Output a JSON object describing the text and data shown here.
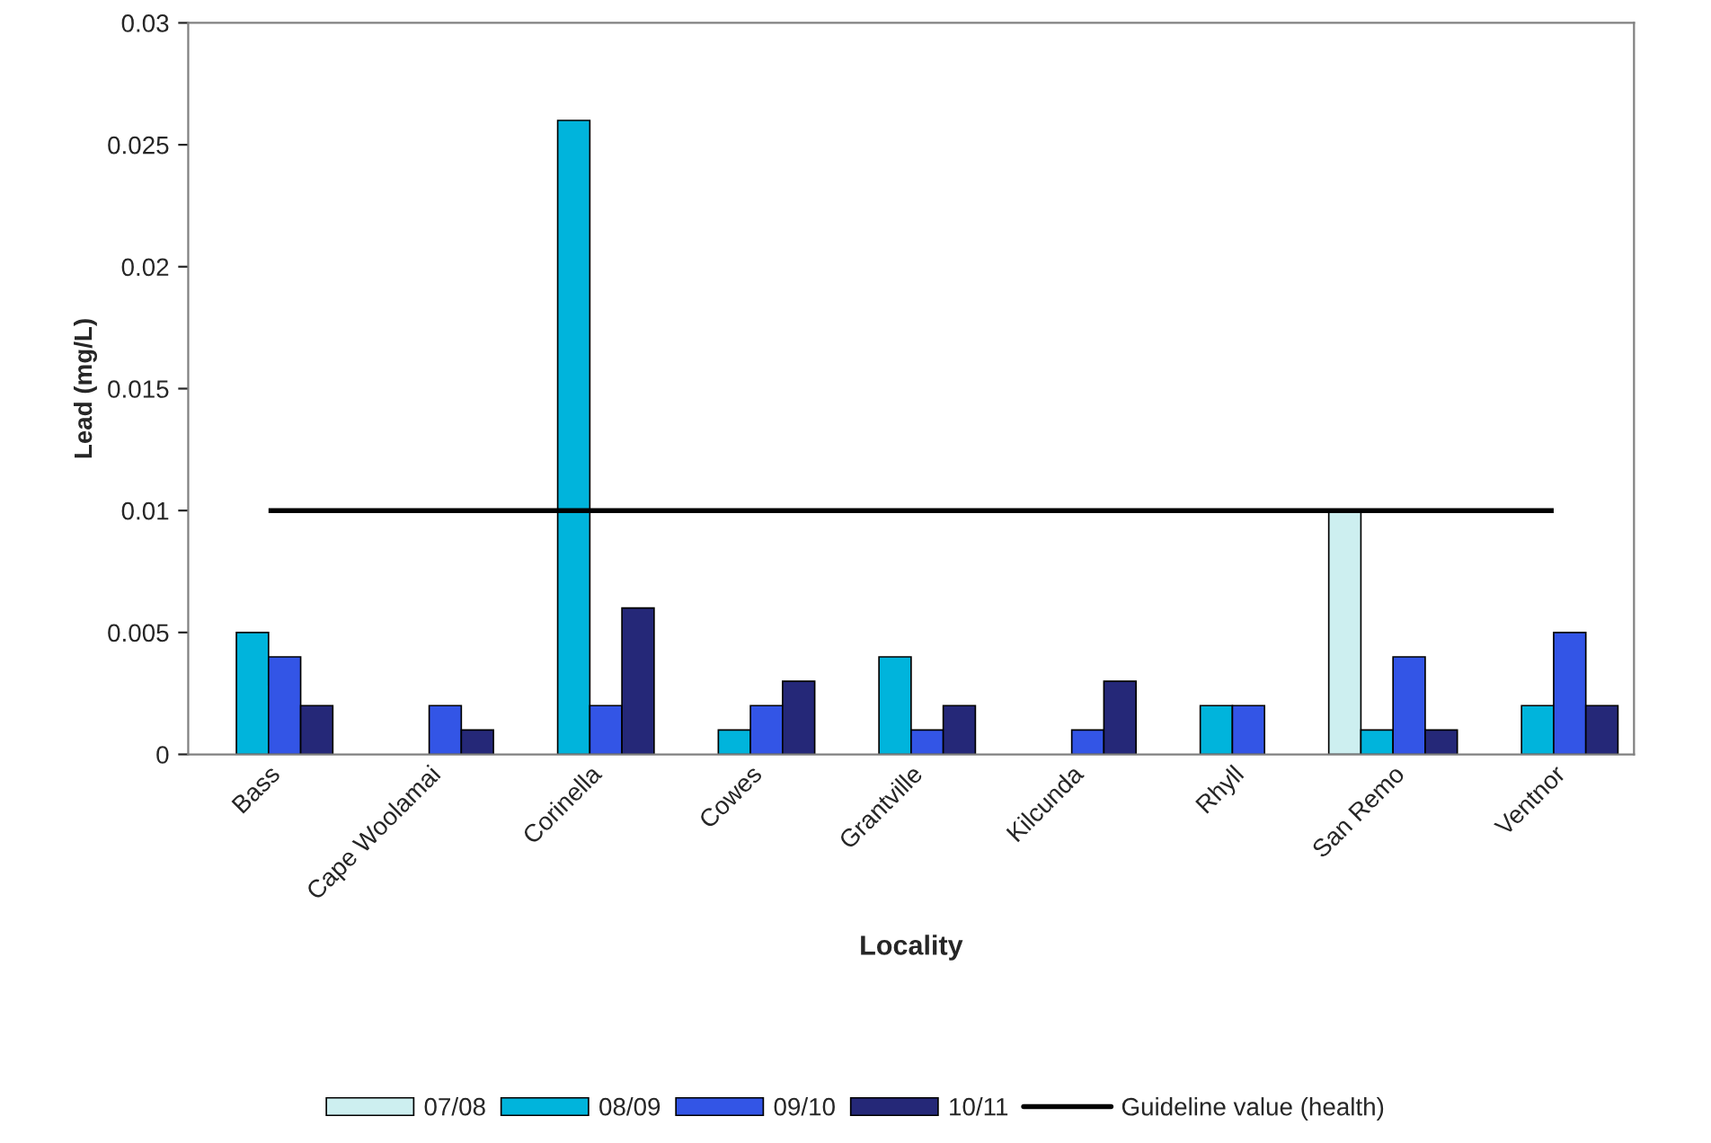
{
  "chart_data": {
    "type": "bar",
    "xlabel": "Locality",
    "ylabel": "Lead (mg/L)",
    "categories": [
      "Bass",
      "Cape Woolamai",
      "Corinella",
      "Cowes",
      "Grantville",
      "Kilcunda",
      "Rhyll",
      "San Remo",
      "Ventnor"
    ],
    "series": [
      {
        "name": "07/08",
        "color": "#cdeff0",
        "values": [
          null,
          null,
          null,
          null,
          null,
          null,
          null,
          0.01,
          null
        ]
      },
      {
        "name": "08/09",
        "color": "#00b4dc",
        "values": [
          0.005,
          null,
          0.026,
          0.001,
          0.004,
          null,
          0.002,
          0.001,
          0.002
        ]
      },
      {
        "name": "09/10",
        "color": "#3355e6",
        "values": [
          0.004,
          0.002,
          0.002,
          0.002,
          0.001,
          0.001,
          0.002,
          0.004,
          0.005
        ]
      },
      {
        "name": "10/11",
        "color": "#252878",
        "values": [
          0.002,
          0.001,
          0.006,
          0.003,
          0.002,
          0.003,
          null,
          0.001,
          0.002
        ]
      }
    ],
    "ref_lines": [
      {
        "axis": "y",
        "value": 0.01,
        "label": "Guideline value (health)",
        "color": "#000000",
        "line_style": "solid"
      }
    ],
    "ylim": [
      0,
      0.03
    ],
    "yticks": [
      0,
      0.005,
      0.01,
      0.015,
      0.02,
      0.025,
      0.03
    ],
    "grid": false,
    "legend": "bottom"
  }
}
